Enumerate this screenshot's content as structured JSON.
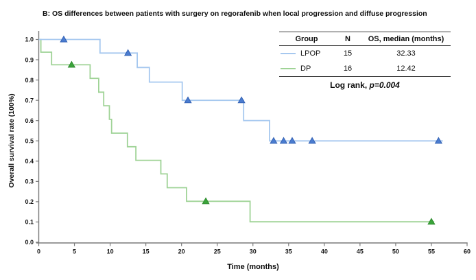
{
  "figure": {
    "title": "B: OS differences between patients with surgery on regorafenib when local progression and diffuse progression"
  },
  "legend_table": {
    "headers": [
      "Group",
      "N",
      "OS, median (months)"
    ],
    "rows": [
      {
        "group": "LPOP",
        "n": "15",
        "os_median": "32.33",
        "swatch_color": "#a6c8ef"
      },
      {
        "group": "DP",
        "n": "16",
        "os_median": "12.42",
        "swatch_color": "#9fd396"
      }
    ],
    "log_rank_prefix": "Log rank, ",
    "log_rank_p": "p=0.004"
  },
  "chart_data": {
    "type": "line",
    "subtype": "kaplan-meier-step",
    "title": "B: OS differences between patients with surgery on regorafenib when local progression and diffuse progression",
    "xlabel": "Time (months)",
    "ylabel": "Overall survival rate (100%)",
    "xlim": [
      0,
      60
    ],
    "ylim": [
      0.0,
      1.0
    ],
    "xticks": [
      0,
      5,
      10,
      15,
      20,
      25,
      30,
      35,
      40,
      45,
      50,
      55,
      60
    ],
    "yticks": [
      "0.0",
      "0.1",
      "0.2",
      "0.3",
      "0.4",
      "0.5",
      "0.6",
      "0.7",
      "0.8",
      "0.9",
      "1.0"
    ],
    "grid": false,
    "legend_position": "top-right-table",
    "axis_color": "#7a7a7a",
    "series": [
      {
        "name": "DP",
        "n": 16,
        "median_os_months": 12.42,
        "color": "#9fd396",
        "marker": "triangle-up",
        "marker_color": "#3aa43a",
        "marker_stroke": "#2d8a2d",
        "steps": [
          [
            0,
            1.0
          ],
          [
            0.3,
            1.0
          ],
          [
            0.3,
            0.9375
          ],
          [
            1.8,
            0.9375
          ],
          [
            1.8,
            0.875
          ],
          [
            7.2,
            0.875
          ],
          [
            7.2,
            0.808
          ],
          [
            8.4,
            0.808
          ],
          [
            8.4,
            0.74
          ],
          [
            9.1,
            0.74
          ],
          [
            9.1,
            0.673
          ],
          [
            9.9,
            0.673
          ],
          [
            9.9,
            0.606
          ],
          [
            10.2,
            0.606
          ],
          [
            10.2,
            0.538
          ],
          [
            12.42,
            0.538
          ],
          [
            12.42,
            0.471
          ],
          [
            13.6,
            0.471
          ],
          [
            13.6,
            0.404
          ],
          [
            17.1,
            0.404
          ],
          [
            17.1,
            0.337
          ],
          [
            18.0,
            0.337
          ],
          [
            18.0,
            0.269
          ],
          [
            20.7,
            0.269
          ],
          [
            20.7,
            0.202
          ],
          [
            29.6,
            0.202
          ],
          [
            29.6,
            0.101
          ],
          [
            55.4,
            0.101
          ]
        ],
        "censors": [
          [
            4.6,
            0.875
          ],
          [
            23.4,
            0.202
          ],
          [
            55.0,
            0.101
          ]
        ]
      },
      {
        "name": "LPOP",
        "n": 15,
        "median_os_months": 32.33,
        "color": "#a6c8ef",
        "marker": "triangle-up",
        "marker_color": "#4a7cd0",
        "marker_stroke": "#3462b4",
        "steps": [
          [
            0,
            1.0
          ],
          [
            8.58,
            1.0
          ],
          [
            8.58,
            0.933
          ],
          [
            13.8,
            0.933
          ],
          [
            13.8,
            0.862
          ],
          [
            15.5,
            0.862
          ],
          [
            15.5,
            0.79
          ],
          [
            20.1,
            0.79
          ],
          [
            20.1,
            0.7
          ],
          [
            28.7,
            0.7
          ],
          [
            28.7,
            0.6
          ],
          [
            32.33,
            0.6
          ],
          [
            32.33,
            0.5
          ],
          [
            56.6,
            0.5
          ]
        ],
        "censors": [
          [
            3.5,
            1.0
          ],
          [
            12.5,
            0.933
          ],
          [
            20.9,
            0.7
          ],
          [
            28.4,
            0.7
          ],
          [
            32.9,
            0.5
          ],
          [
            34.3,
            0.5
          ],
          [
            35.5,
            0.5
          ],
          [
            38.3,
            0.5
          ],
          [
            56.0,
            0.5
          ]
        ]
      }
    ],
    "annotation": "Log rank, p=0.004"
  }
}
